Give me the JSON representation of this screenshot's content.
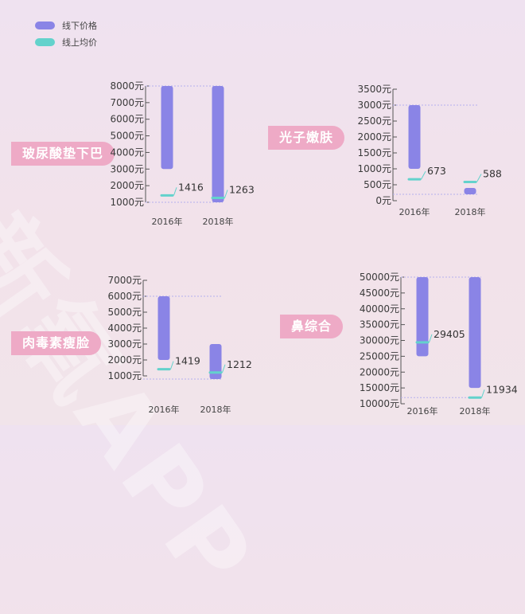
{
  "legend": {
    "offline_label": "线下价格",
    "online_label": "线上均价"
  },
  "colors": {
    "offline": "#8a84e6",
    "online": "#63d2cc",
    "tag": "#eeaac6",
    "guide": "#b5b0ee"
  },
  "watermark": "新氧APP",
  "chart_data": [
    {
      "type": "bar",
      "title": "玻尿酸垫下巴",
      "categories": [
        "2016年",
        "2018年"
      ],
      "series": [
        {
          "name": "线下价格",
          "ranges": [
            [
              3000,
              8000
            ],
            [
              1000,
              8000
            ]
          ]
        },
        {
          "name": "线上均价",
          "values": [
            1416,
            1263
          ]
        }
      ],
      "online_labels": [
        "1416",
        "1263"
      ],
      "ylim": [
        1000,
        8000
      ],
      "yticks": [
        1000,
        2000,
        3000,
        4000,
        5000,
        6000,
        7000,
        8000
      ],
      "ytick_labels": [
        "1000元",
        "2000元",
        "3000元",
        "4000元",
        "5000元",
        "6000元",
        "7000元",
        "8000元"
      ]
    },
    {
      "type": "bar",
      "title": "光子嫩肤",
      "categories": [
        "2016年",
        "2018年"
      ],
      "series": [
        {
          "name": "线下价格",
          "ranges": [
            [
              1000,
              3000
            ],
            [
              200,
              400
            ]
          ]
        },
        {
          "name": "线上均价",
          "values": [
            673,
            588
          ]
        }
      ],
      "online_labels": [
        "673",
        "588"
      ],
      "ylim": [
        0,
        3500
      ],
      "yticks": [
        0,
        500,
        1000,
        1500,
        2000,
        2500,
        3000,
        3500
      ],
      "ytick_labels": [
        "0元",
        "500元",
        "1000元",
        "1500元",
        "2000元",
        "2500元",
        "3000元",
        "3500元"
      ]
    },
    {
      "type": "bar",
      "title": "肉毒素瘦脸",
      "categories": [
        "2016年",
        "2018年"
      ],
      "series": [
        {
          "name": "线下价格",
          "ranges": [
            [
              2000,
              6000
            ],
            [
              800,
              3000
            ]
          ]
        },
        {
          "name": "线上均价",
          "values": [
            1419,
            1212
          ]
        }
      ],
      "online_labels": [
        "1419",
        "1212"
      ],
      "ylim": [
        1000,
        7000
      ],
      "yticks": [
        1000,
        2000,
        3000,
        4000,
        5000,
        6000,
        7000
      ],
      "ytick_labels": [
        "1000元",
        "2000元",
        "3000元",
        "4000元",
        "5000元",
        "6000元",
        "7000元"
      ]
    },
    {
      "type": "bar",
      "title": "鼻综合",
      "categories": [
        "2016年",
        "2018年"
      ],
      "series": [
        {
          "name": "线下价格",
          "ranges": [
            [
              25000,
              50000
            ],
            [
              15000,
              50000
            ]
          ]
        },
        {
          "name": "线上均价",
          "values": [
            29405,
            11934
          ]
        }
      ],
      "online_labels": [
        "29405",
        "11934"
      ],
      "ylim": [
        10000,
        50000
      ],
      "yticks": [
        10000,
        15000,
        20000,
        25000,
        30000,
        35000,
        40000,
        45000,
        50000
      ],
      "ytick_labels": [
        "10000元",
        "15000元",
        "20000元",
        "25000元",
        "30000元",
        "35000元",
        "40000元",
        "45000元",
        "50000元"
      ]
    }
  ]
}
